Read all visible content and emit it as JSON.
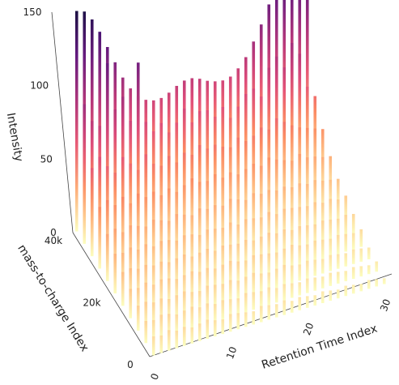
{
  "chart_data": {
    "type": "3d-bar",
    "title": "",
    "xlabel": "Retention Time Index",
    "ylabel": "mass-to-charge Index",
    "zlabel": "Intensity",
    "x_range": [
      0,
      33
    ],
    "y_range": [
      0,
      40000
    ],
    "z_range": [
      0,
      170
    ],
    "x_ticks": [
      0,
      10,
      20,
      30
    ],
    "x_tick_labels": [
      "0",
      "10",
      "20",
      "30"
    ],
    "y_ticks": [
      0,
      20000,
      40000
    ],
    "y_tick_labels": [
      "0",
      "20k",
      "40k"
    ],
    "z_ticks": [
      0,
      50,
      100,
      150
    ],
    "z_tick_labels": [
      "0",
      "50",
      "100",
      "150"
    ],
    "colormap": "magma",
    "colormap_stops": [
      "#fcfdbf",
      "#fec287",
      "#fb8861",
      "#e3507a",
      "#b73779",
      "#822681",
      "#51127c",
      "#1d1147",
      "#000004"
    ],
    "grid": false,
    "y_rows": [
      40000,
      36000,
      32000,
      28000,
      24000,
      20000,
      16000,
      12000,
      8000,
      4000,
      0
    ],
    "peak_row": [
      150,
      148,
      141,
      131,
      119,
      107,
      95,
      86,
      79,
      75,
      73,
      73,
      75,
      78,
      80,
      80,
      78,
      75,
      73,
      72,
      73,
      77,
      83,
      92,
      102,
      114,
      126,
      136,
      144,
      149,
      150
    ],
    "values": [
      [
        150,
        148,
        141,
        131,
        119,
        107,
        95,
        86,
        79,
        75,
        73,
        73,
        75,
        78,
        80,
        80,
        78,
        75,
        73,
        72,
        73,
        77,
        83,
        92,
        102,
        114,
        126,
        136,
        144,
        149,
        150
      ],
      [
        95,
        82,
        77,
        118,
        85,
        92,
        74,
        112,
        70,
        62,
        66,
        58,
        63,
        71,
        60,
        66,
        65,
        59,
        64,
        55,
        61,
        68,
        70,
        63,
        81,
        87,
        78,
        93,
        84,
        60,
        52
      ],
      [
        60,
        66,
        58,
        52,
        61,
        55,
        49,
        58,
        50,
        47,
        52,
        46,
        51,
        48,
        53,
        49,
        50,
        47,
        45,
        50,
        46,
        48,
        52,
        49,
        55,
        51,
        47,
        44,
        42,
        40,
        38
      ],
      [
        42,
        45,
        40,
        44,
        38,
        43,
        39,
        41,
        37,
        40,
        36,
        39,
        42,
        38,
        37,
        40,
        36,
        38,
        35,
        37,
        39,
        36,
        40,
        37,
        35,
        33,
        36,
        32,
        31,
        29,
        28
      ],
      [
        32,
        34,
        30,
        33,
        31,
        29,
        32,
        30,
        28,
        31,
        29,
        27,
        30,
        28,
        29,
        27,
        30,
        28,
        26,
        29,
        27,
        28,
        26,
        27,
        25,
        26,
        24,
        25,
        23,
        22,
        21
      ],
      [
        27,
        26,
        28,
        25,
        27,
        24,
        26,
        25,
        23,
        25,
        24,
        22,
        24,
        23,
        22,
        24,
        21,
        23,
        22,
        21,
        23,
        20,
        22,
        21,
        20,
        19,
        20,
        18,
        19,
        17,
        18
      ],
      [
        23,
        24,
        22,
        23,
        21,
        22,
        20,
        21,
        22,
        19,
        20,
        21,
        18,
        20,
        19,
        18,
        19,
        17,
        18,
        19,
        17,
        18,
        16,
        17,
        16,
        15,
        16,
        15,
        14,
        15,
        14
      ],
      [
        20,
        19,
        21,
        18,
        20,
        19,
        17,
        18,
        19,
        17,
        18,
        16,
        17,
        18,
        16,
        15,
        17,
        16,
        15,
        14,
        15,
        16,
        14,
        13,
        14,
        13,
        12,
        13,
        12,
        11,
        12
      ],
      [
        17,
        18,
        16,
        17,
        15,
        16,
        17,
        15,
        14,
        16,
        15,
        14,
        15,
        13,
        14,
        15,
        13,
        12,
        13,
        14,
        12,
        11,
        12,
        11,
        10,
        11,
        10,
        9,
        10,
        9,
        8
      ],
      [
        15,
        14,
        16,
        15,
        13,
        14,
        15,
        13,
        14,
        12,
        13,
        12,
        11,
        13,
        12,
        11,
        12,
        10,
        11,
        10,
        9,
        10,
        9,
        8,
        9,
        8,
        7,
        8,
        7,
        6,
        7
      ],
      [
        13,
        12,
        14,
        12,
        13,
        11,
        12,
        13,
        11,
        10,
        12,
        11,
        10,
        9,
        11,
        10,
        9,
        10,
        8,
        9,
        8,
        7,
        8,
        7,
        6,
        7,
        6,
        5,
        6,
        5,
        4
      ]
    ]
  }
}
